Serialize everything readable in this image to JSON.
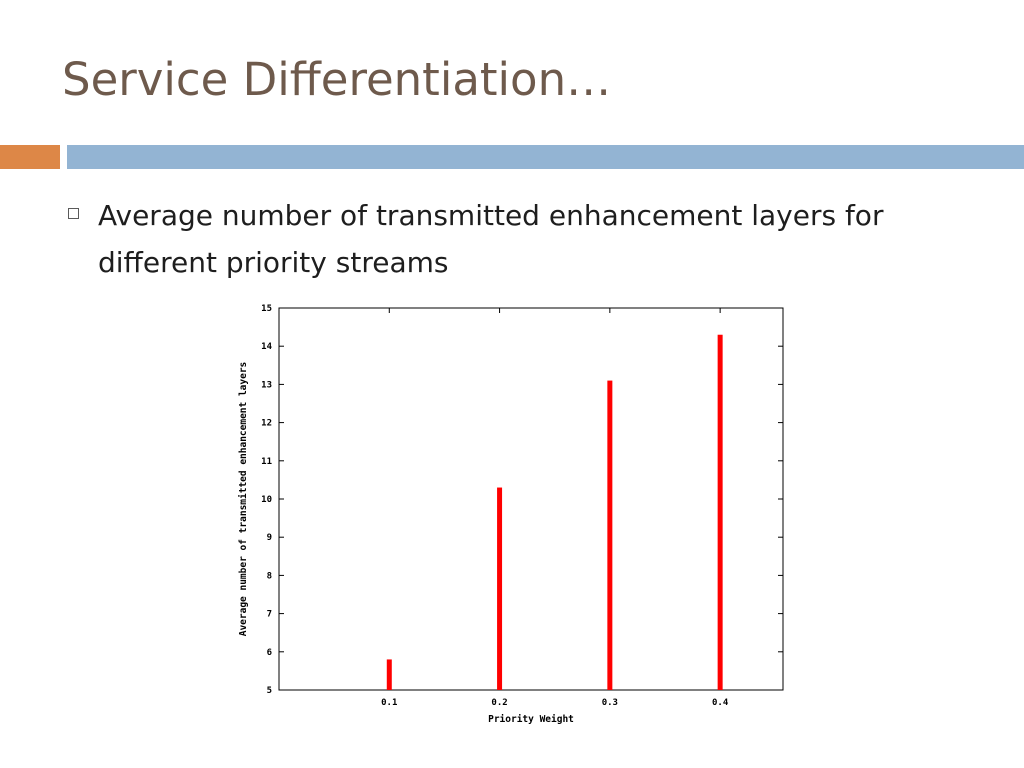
{
  "slide": {
    "title": "Service Differentiation…",
    "bullet": "Average number of transmitted enhancement layers for different priority streams",
    "colors": {
      "title": "#6e5a4c",
      "accent_orange": "#dd8747",
      "accent_blue": "#93b4d3"
    }
  },
  "chart_data": {
    "type": "bar",
    "title": "",
    "xlabel": "Priority Weight",
    "ylabel": "Average number of transmitted enhancement layers",
    "categories": [
      "0.1",
      "0.2",
      "0.3",
      "0.4"
    ],
    "values": [
      5.8,
      10.3,
      13.1,
      14.3
    ],
    "ylim": [
      5,
      15
    ],
    "yticks": [
      "5",
      "6",
      "7",
      "8",
      "9",
      "10",
      "11",
      "12",
      "13",
      "14",
      "15"
    ],
    "bar_color": "#ff0000",
    "grid": false,
    "legend": "none"
  }
}
